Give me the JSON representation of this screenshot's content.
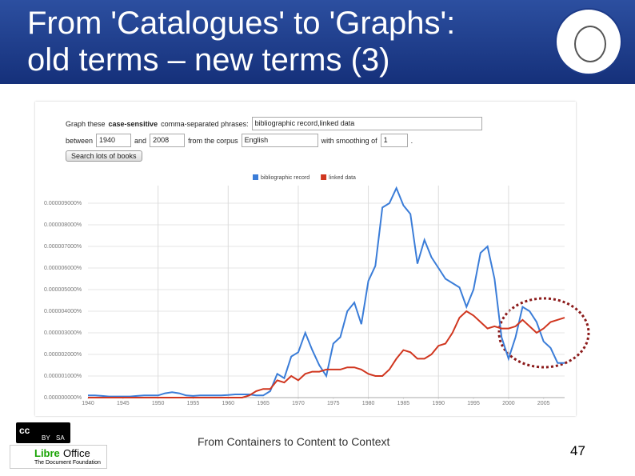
{
  "slide": {
    "title_lines": [
      "From 'Catalogues' to 'Graphs':",
      "old terms – new terms (3)"
    ],
    "footer": "From Containers to Content to Context",
    "page_number": "47",
    "cc_logo": {
      "mark": "cc",
      "by": "BY",
      "sa": "SA"
    },
    "libreoffice_logo": {
      "name_libre": "Libre",
      "name_office": "Office",
      "tagline": "The Document Foundation"
    }
  },
  "form": {
    "graph_prefix": "Graph these",
    "graph_bold": "case-sensitive",
    "graph_suffix": "comma-separated phrases:",
    "phrases": "bibliographic record,linked data",
    "between": "between",
    "start_year": "1940",
    "and": "and",
    "end_year": "2008",
    "from_corpus": "from the corpus",
    "corpus": "English",
    "smoothing_label": "with smoothing of",
    "smoothing": "1",
    "period": ".",
    "button": "Search lots of books"
  },
  "chart_data": {
    "type": "line",
    "x": [
      1940,
      1941,
      1942,
      1943,
      1944,
      1945,
      1946,
      1947,
      1948,
      1949,
      1950,
      1951,
      1952,
      1953,
      1954,
      1955,
      1956,
      1957,
      1958,
      1959,
      1960,
      1961,
      1962,
      1963,
      1964,
      1965,
      1966,
      1967,
      1968,
      1969,
      1970,
      1971,
      1972,
      1973,
      1974,
      1975,
      1976,
      1977,
      1978,
      1979,
      1980,
      1981,
      1982,
      1983,
      1984,
      1985,
      1986,
      1987,
      1988,
      1989,
      1990,
      1991,
      1992,
      1993,
      1994,
      1995,
      1996,
      1997,
      1998,
      1999,
      2000,
      2001,
      2002,
      2003,
      2004,
      2005,
      2006,
      2007,
      2008
    ],
    "xlim": [
      1940,
      2008
    ],
    "xticks": [
      1940,
      1945,
      1950,
      1955,
      1960,
      1965,
      1970,
      1975,
      1980,
      1985,
      1990,
      1995,
      2000,
      2005
    ],
    "ylim": [
      0,
      1e-05
    ],
    "yticks": [
      {
        "value": 0,
        "label": "0.000000000%"
      },
      {
        "value": 1e-06,
        "label": "0.000001000%"
      },
      {
        "value": 2e-06,
        "label": "0.000002000%"
      },
      {
        "value": 3e-06,
        "label": "0.000003000%"
      },
      {
        "value": 4e-06,
        "label": "0.000004000%"
      },
      {
        "value": 5e-06,
        "label": "0.000005000%"
      },
      {
        "value": 6e-06,
        "label": "0.000006000%"
      },
      {
        "value": 7e-06,
        "label": "0.000007000%"
      },
      {
        "value": 8e-06,
        "label": "0.000008000%"
      },
      {
        "value": 9e-06,
        "label": "0.000009000%"
      }
    ],
    "grid": true,
    "legend": "top",
    "series": [
      {
        "name": "bibliographic record",
        "color": "#3b7dd8",
        "values": [
          1e-07,
          1e-07,
          8e-08,
          5e-08,
          5e-08,
          5e-08,
          5e-08,
          8e-08,
          1e-07,
          1e-07,
          1e-07,
          2e-07,
          2.5e-07,
          2e-07,
          1e-07,
          8e-08,
          1e-07,
          1e-07,
          1e-07,
          1e-07,
          1.2e-07,
          1.5e-07,
          1.5e-07,
          1.5e-07,
          1e-07,
          1e-07,
          3e-07,
          1.1e-06,
          9e-07,
          1.9e-06,
          2.1e-06,
          3e-06,
          2.2e-06,
          1.5e-06,
          1e-06,
          2.5e-06,
          2.8e-06,
          4e-06,
          4.4e-06,
          3.4e-06,
          5.4e-06,
          6.1e-06,
          8.8e-06,
          9e-06,
          9.7e-06,
          8.9e-06,
          8.5e-06,
          6.2e-06,
          7.3e-06,
          6.5e-06,
          6e-06,
          5.5e-06,
          5.3e-06,
          5.1e-06,
          4.2e-06,
          5e-06,
          6.7e-06,
          7e-06,
          5.5e-06,
          2.8e-06,
          1.8e-06,
          2.8e-06,
          4.2e-06,
          4e-06,
          3.5e-06,
          2.6e-06,
          2.3e-06,
          1.6e-06,
          1.6e-06
        ]
      },
      {
        "name": "linked data",
        "color": "#d0361f",
        "values": [
          0,
          0,
          0,
          0,
          0,
          0,
          0,
          0,
          0,
          0,
          0,
          0,
          0,
          0,
          0,
          0,
          0,
          0,
          0,
          0,
          0,
          0,
          0,
          1e-07,
          3e-07,
          4e-07,
          4e-07,
          8e-07,
          7e-07,
          1e-06,
          8e-07,
          1.1e-06,
          1.2e-06,
          1.2e-06,
          1.3e-06,
          1.3e-06,
          1.3e-06,
          1.4e-06,
          1.4e-06,
          1.3e-06,
          1.1e-06,
          1e-06,
          1e-06,
          1.3e-06,
          1.8e-06,
          2.2e-06,
          2.1e-06,
          1.8e-06,
          1.8e-06,
          2e-06,
          2.4e-06,
          2.5e-06,
          3e-06,
          3.7e-06,
          4e-06,
          3.8e-06,
          3.5e-06,
          3.2e-06,
          3.3e-06,
          3.2e-06,
          3.2e-06,
          3.3e-06,
          3.6e-06,
          3.3e-06,
          3e-06,
          3.2e-06,
          3.5e-06,
          3.6e-06,
          3.7e-06
        ]
      }
    ]
  }
}
